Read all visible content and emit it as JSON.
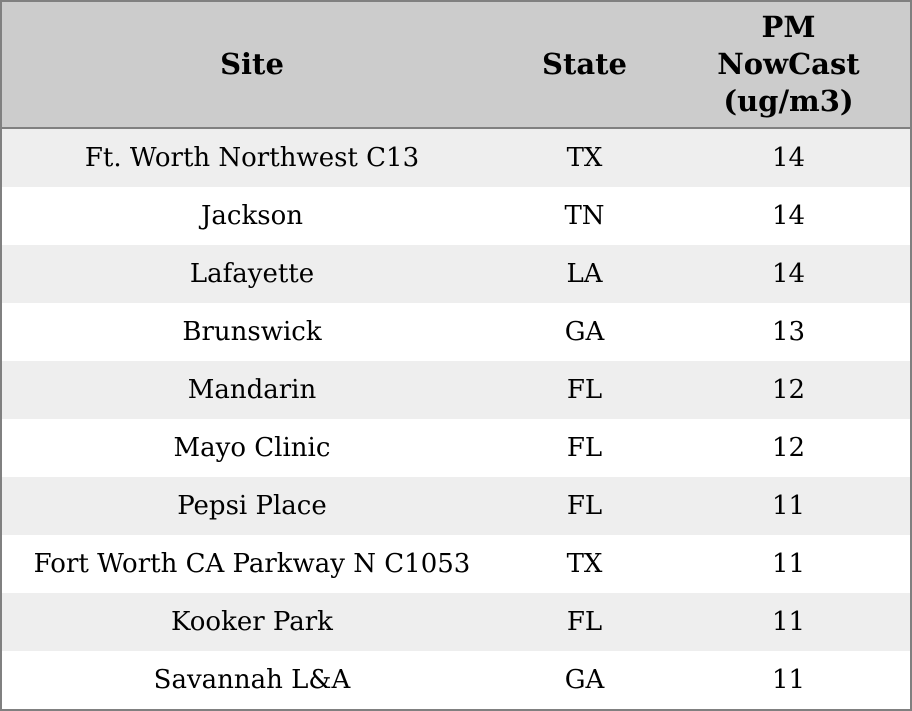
{
  "table": {
    "columns": [
      {
        "key": "site",
        "label": "Site"
      },
      {
        "key": "state",
        "label": "State"
      },
      {
        "key": "pm",
        "label": "PM\nNowCast\n(ug/m3)"
      }
    ],
    "rows": [
      {
        "site": "Ft. Worth Northwest C13",
        "state": "TX",
        "pm": "14"
      },
      {
        "site": "Jackson",
        "state": "TN",
        "pm": "14"
      },
      {
        "site": "Lafayette",
        "state": "LA",
        "pm": "14"
      },
      {
        "site": "Brunswick",
        "state": "GA",
        "pm": "13"
      },
      {
        "site": "Mandarin",
        "state": "FL",
        "pm": "12"
      },
      {
        "site": "Mayo Clinic",
        "state": "FL",
        "pm": "12"
      },
      {
        "site": "Pepsi Place",
        "state": "FL",
        "pm": "11"
      },
      {
        "site": "Fort Worth CA Parkway N C1053",
        "state": "TX",
        "pm": "11"
      },
      {
        "site": "Kooker Park",
        "state": "FL",
        "pm": "11"
      },
      {
        "site": "Savannah L&A",
        "state": "GA",
        "pm": "11"
      }
    ]
  },
  "colors": {
    "header_bg": "#cccccc",
    "row_stripe_bg": "#eeeeee",
    "row_bg": "#ffffff",
    "border": "#808080",
    "text": "#000000"
  },
  "chart_data": {
    "type": "table",
    "title": "",
    "columns": [
      "Site",
      "State",
      "PM NowCast (ug/m3)"
    ],
    "rows": [
      [
        "Ft. Worth Northwest C13",
        "TX",
        14
      ],
      [
        "Jackson",
        "TN",
        14
      ],
      [
        "Lafayette",
        "LA",
        14
      ],
      [
        "Brunswick",
        "GA",
        13
      ],
      [
        "Mandarin",
        "FL",
        12
      ],
      [
        "Mayo Clinic",
        "FL",
        12
      ],
      [
        "Pepsi Place",
        "FL",
        11
      ],
      [
        "Fort Worth CA Parkway N C1053",
        "TX",
        11
      ],
      [
        "Kooker Park",
        "FL",
        11
      ],
      [
        "Savannah L&A",
        "GA",
        11
      ]
    ]
  }
}
